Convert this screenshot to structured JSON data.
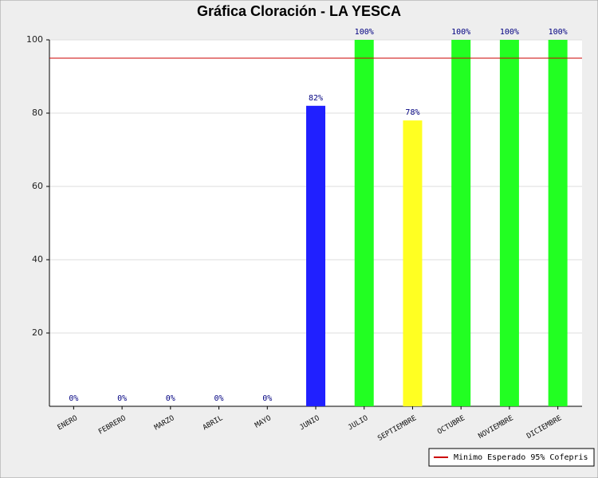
{
  "chart_data": {
    "type": "bar",
    "title": "Gráfica Cloración - LA YESCA",
    "categories": [
      "ENERO",
      "FEBRERO",
      "MARZO",
      "ABRIL",
      "MAYO",
      "JUNIO",
      "JULIO",
      "SEPTIEMBRE",
      "OCTUBRE",
      "NOVIEMBRE",
      "DICIEMBRE"
    ],
    "values": [
      0,
      0,
      0,
      0,
      0,
      82,
      100,
      78,
      100,
      100,
      100
    ],
    "value_labels": [
      "0%",
      "0%",
      "0%",
      "0%",
      "0%",
      "82%",
      "100%",
      "78%",
      "100%",
      "100%",
      "100%"
    ],
    "colors": [
      "#2020ff",
      "#2020ff",
      "#2020ff",
      "#2020ff",
      "#2020ff",
      "#2020ff",
      "#22ff22",
      "#ffff22",
      "#22ff22",
      "#22ff22",
      "#22ff22"
    ],
    "ylim": [
      0,
      100
    ],
    "yticks": [
      20,
      40,
      60,
      80,
      100
    ],
    "grid": true,
    "reference_line": {
      "value": 95,
      "color": "#cc0000",
      "label": "Minimo Esperado 95% Cofepris"
    },
    "legend_position": "bottom-right"
  }
}
